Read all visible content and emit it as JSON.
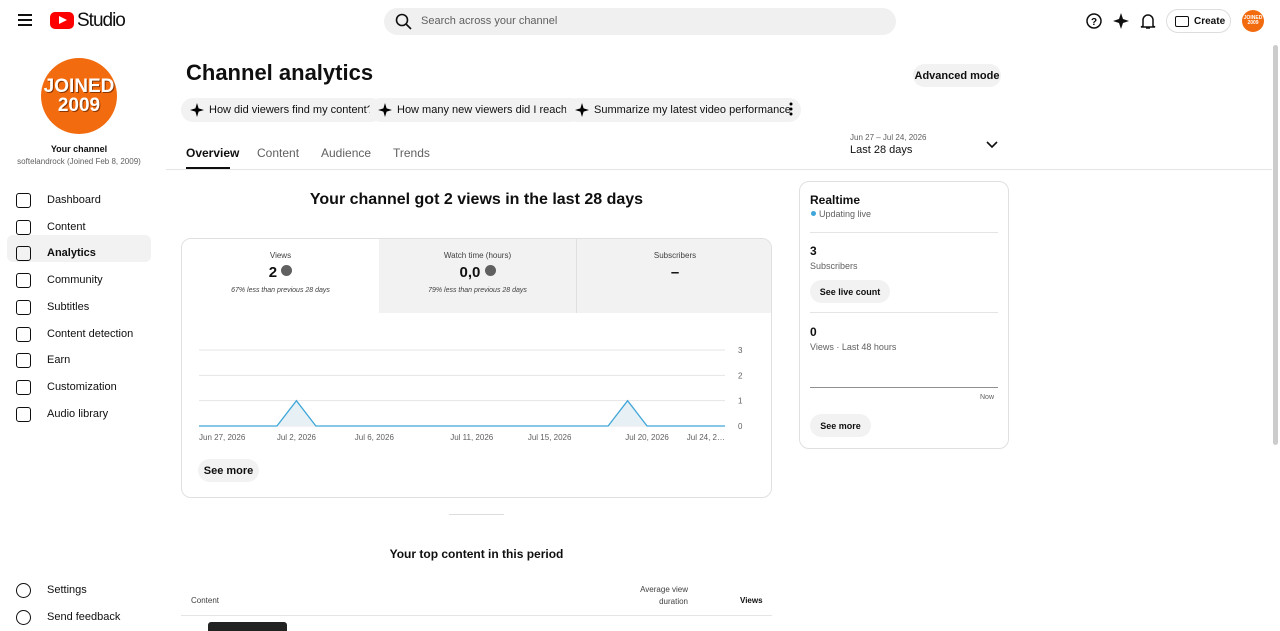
{
  "header": {
    "logo": "Studio",
    "search": "Search across your channel",
    "create": "Create"
  },
  "avatar": {
    "lines": [
      "JOINED",
      "2009"
    ]
  },
  "sidebar": {
    "channel_label": "Your channel",
    "channel_name": "softelandrock (Joined Feb 8, 2009)",
    "nav": [
      "Dashboard",
      "Content",
      "Analytics",
      "Community",
      "Subtitles",
      "Content detection",
      "Earn",
      "Customization",
      "Audio library"
    ],
    "bottom": [
      "Settings",
      "Send feedback"
    ]
  },
  "main": {
    "title": "Channel analytics",
    "advanced": "Advanced mode",
    "prompts": [
      "How did viewers find my content?",
      "How many new viewers did I reach?",
      "Summarize my latest video performance"
    ],
    "tabs": [
      "Overview",
      "Content",
      "Audience",
      "Trends"
    ],
    "date_range": "Jun 27 – Jul 24, 2026",
    "period": "Last 28 days",
    "headline": "Your channel got 2 views in the last 28 days",
    "metrics": [
      {
        "label": "Views",
        "value": "2",
        "note": "67% less than previous 28 days"
      },
      {
        "label": "Watch time (hours)",
        "value": "0,0",
        "note": "79% less than previous 28 days"
      },
      {
        "label": "Subscribers",
        "value": "–"
      }
    ],
    "see_more": "See more",
    "top_title": "Your top content in this period",
    "table_headers": [
      "Content",
      "Average view duration",
      "Views"
    ]
  },
  "realtime": {
    "title": "Realtime",
    "status": "Updating live",
    "subs_value": "3",
    "subs_label": "Subscribers",
    "live_btn": "See live count",
    "views_value": "0",
    "views_label": "Views · Last 48 hours",
    "now": "Now",
    "see_more": "See more"
  },
  "chart_data": {
    "type": "line",
    "color": "#3ea6d8",
    "categories": [
      "Jun 27, 2026",
      null,
      null,
      null,
      null,
      "Jul 2, 2026",
      null,
      null,
      null,
      "Jul 6, 2026",
      null,
      null,
      null,
      null,
      "Jul 11, 2026",
      null,
      null,
      null,
      "Jul 15, 2026",
      null,
      null,
      null,
      null,
      "Jul 20, 2026",
      null,
      null,
      null,
      "Jul 24, 2…"
    ],
    "values": [
      0,
      0,
      0,
      0,
      0,
      1,
      0,
      0,
      0,
      0,
      0,
      0,
      0,
      0,
      0,
      0,
      0,
      0,
      0,
      0,
      0,
      0,
      1,
      0,
      0,
      0,
      0,
      0
    ],
    "ylim": [
      0,
      3
    ],
    "yticks": [
      0,
      1,
      2,
      3
    ],
    "grid": true
  }
}
